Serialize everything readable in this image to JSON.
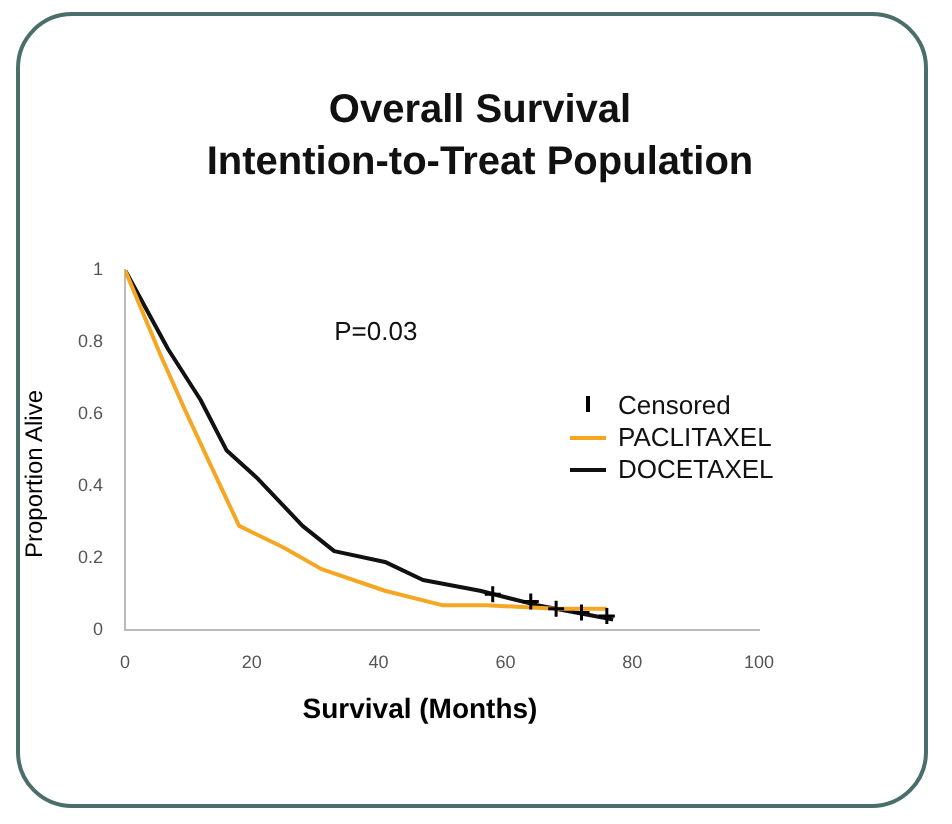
{
  "chart_data": {
    "type": "line",
    "title": "Overall Survival\nIntention-to-Treat Population",
    "xlabel": "Survival (Months)",
    "ylabel": "Proportion Alive",
    "annotations": [
      "P=0.03"
    ],
    "xlim": [
      0,
      100
    ],
    "xticks": [
      0,
      20,
      40,
      60,
      80,
      100
    ],
    "ylim": [
      0,
      1
    ],
    "yticks": [
      0,
      0.2,
      0.4,
      0.6,
      0.8,
      1
    ],
    "grid": false,
    "legend": "top right",
    "series": [
      {
        "name": "Censored",
        "type": "scatter",
        "marker": "cross",
        "color": "#000000",
        "x": [
          58,
          64,
          68,
          72,
          76
        ],
        "values": [
          0.1,
          0.08,
          0.06,
          0.05,
          0.04
        ]
      },
      {
        "name": "PACLITAXEL",
        "type": "line",
        "marker": "none",
        "color": "#f5a623",
        "x": [
          0,
          5.7,
          9.5,
          14,
          18,
          25,
          31,
          41,
          50,
          57,
          68,
          76
        ],
        "values": [
          1,
          0.76,
          0.61,
          0.44,
          0.29,
          0.23,
          0.17,
          0.11,
          0.07,
          0.07,
          0.06,
          0.06
        ]
      },
      {
        "name": "DOCETAXEL",
        "type": "line",
        "marker": "none",
        "color": "#111111",
        "x": [
          0,
          6.8,
          11.9,
          16,
          21,
          28,
          33,
          41,
          47,
          56,
          65,
          77
        ],
        "values": [
          1,
          0.78,
          0.64,
          0.5,
          0.42,
          0.29,
          0.22,
          0.19,
          0.14,
          0.11,
          0.07,
          0.03
        ]
      }
    ]
  }
}
